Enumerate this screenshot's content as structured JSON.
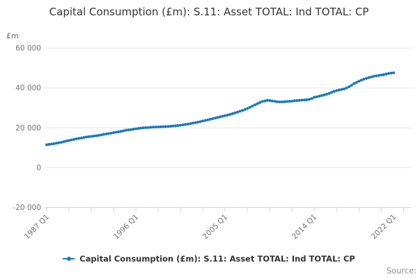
{
  "chart": {
    "title": "Capital Consumption (£m): S.11: Asset TOTAL: Ind TOTAL: CP",
    "y_axis": {
      "unit": "£m",
      "min": -20000,
      "max": 60000,
      "ticks": [
        {
          "value": 60000,
          "label": "60 000"
        },
        {
          "value": 40000,
          "label": "40 000"
        },
        {
          "value": 20000,
          "label": "20 000"
        },
        {
          "value": 0,
          "label": "0"
        },
        {
          "value": -20000,
          "label": "-20 000"
        }
      ]
    },
    "x_axis": {
      "start_period": "1987 Q1",
      "end_period": "2022 Q1",
      "frequency": "quarterly",
      "minor_tick_step_quarters": 9,
      "labels": [
        {
          "q": 0,
          "label": "1987 Q1"
        },
        {
          "q": 36,
          "label": "1996 Q1"
        },
        {
          "q": 72,
          "label": "2005 Q1"
        },
        {
          "q": 108,
          "label": "2014 Q1"
        },
        {
          "q": 140,
          "label": "2022 Q1"
        }
      ]
    },
    "legend": {
      "label": "Capital Consumption (£m): S.11: Asset TOTAL: Ind TOTAL: CP"
    },
    "source_label": "Source:",
    "colors": {
      "series": "#1878be",
      "grid": "#e6e6e6",
      "axis": "#ccd3e8",
      "tick_text": "#707070",
      "title_text": "#333333"
    }
  },
  "chart_data": {
    "type": "line",
    "title": "Capital Consumption (£m): S.11: Asset TOTAL: Ind TOTAL: CP",
    "ylabel": "£m",
    "ylim": [
      -20000,
      60000
    ],
    "x_start": "1987 Q1",
    "frequency": "quarterly",
    "x_tick_labels": [
      "1987 Q1",
      "1996 Q1",
      "2005 Q1",
      "2014 Q1",
      "2022 Q1"
    ],
    "legend_position": "bottom",
    "grid": true,
    "series": [
      {
        "name": "Capital Consumption (£m): S.11: Asset TOTAL: Ind TOTAL: CP",
        "values": [
          11500,
          11700,
          11850,
          12050,
          12300,
          12500,
          12750,
          13050,
          13400,
          13650,
          13900,
          14200,
          14500,
          14700,
          14900,
          15150,
          15400,
          15550,
          15700,
          15850,
          16000,
          16200,
          16450,
          16700,
          16900,
          17100,
          17350,
          17600,
          17800,
          18000,
          18200,
          18450,
          18800,
          18950,
          19100,
          19300,
          19500,
          19700,
          19850,
          20000,
          20100,
          20150,
          20250,
          20350,
          20400,
          20450,
          20500,
          20550,
          20600,
          20700,
          20800,
          20900,
          21000,
          21150,
          21300,
          21500,
          21700,
          21900,
          22100,
          22350,
          22600,
          22850,
          23100,
          23400,
          23700,
          24000,
          24300,
          24600,
          24900,
          25200,
          25500,
          25800,
          26100,
          26400,
          26750,
          27100,
          27500,
          27900,
          28300,
          28700,
          29200,
          29700,
          30300,
          30900,
          31500,
          32100,
          32700,
          33200,
          33500,
          33800,
          33700,
          33500,
          33300,
          33100,
          33000,
          33000,
          33100,
          33200,
          33300,
          33400,
          33600,
          33700,
          33800,
          33900,
          34000,
          34100,
          34300,
          34700,
          35300,
          35600,
          35900,
          36200,
          36500,
          36900,
          37300,
          37800,
          38300,
          38700,
          39000,
          39200,
          39500,
          40000,
          40600,
          41300,
          42200,
          42800,
          43400,
          43900,
          44400,
          44800,
          45200,
          45500,
          45900,
          46100,
          46300,
          46500,
          46700,
          47000,
          47300,
          47500,
          47600
        ]
      }
    ]
  }
}
